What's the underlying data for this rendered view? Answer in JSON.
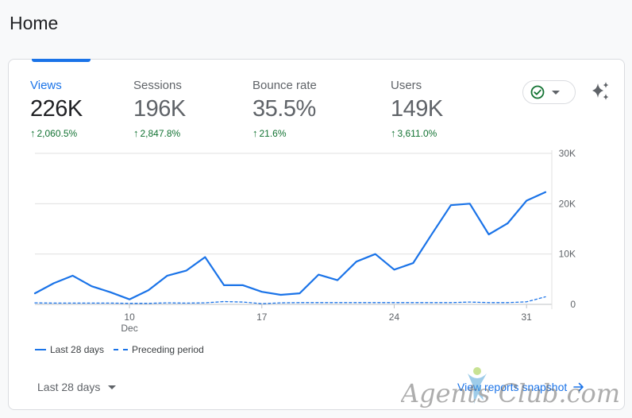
{
  "page": {
    "title": "Home"
  },
  "metrics": [
    {
      "label": "Views",
      "value": "226K",
      "change": "2,060.5%"
    },
    {
      "label": "Sessions",
      "value": "196K",
      "change": "2,847.8%"
    },
    {
      "label": "Bounce rate",
      "value": "35.5%",
      "change": "21.6%"
    },
    {
      "label": "Users",
      "value": "149K",
      "change": "3,611.0%"
    }
  ],
  "controls": {
    "status_icon": "check-circle-icon",
    "insights_icon": "sparkle-icon"
  },
  "legend": {
    "current": "Last 28 days",
    "previous": "Preceding period"
  },
  "footer": {
    "date_range": "Last 28 days",
    "snapshot_link": "View reports snapshot"
  },
  "watermark": {
    "text": "Agents Club.com"
  },
  "colors": {
    "accent": "#1a73e8",
    "positive": "#137333",
    "grid": "#e0e0e0"
  },
  "chart_data": {
    "type": "line",
    "x_ticks": [
      {
        "label": "10",
        "sublabel": "Dec",
        "index": 5
      },
      {
        "label": "17",
        "sublabel": "",
        "index": 12
      },
      {
        "label": "24",
        "sublabel": "",
        "index": 19
      },
      {
        "label": "31",
        "sublabel": "",
        "index": 26
      }
    ],
    "y_ticks": [
      "0",
      "10K",
      "20K",
      "30K"
    ],
    "ylim": [
      0,
      30000
    ],
    "grid": true,
    "legend_position": "bottom-left",
    "series": [
      {
        "name": "Last 28 days",
        "style": "solid",
        "values": [
          2200,
          4200,
          5700,
          3600,
          2400,
          1000,
          2800,
          5700,
          6700,
          9400,
          3800,
          3800,
          2500,
          1900,
          2200,
          5900,
          4800,
          8500,
          10000,
          6900,
          8200,
          14000,
          19700,
          20000,
          13900,
          16100,
          20600,
          22300
        ]
      },
      {
        "name": "Preceding period",
        "style": "dashed",
        "values": [
          300,
          250,
          250,
          250,
          250,
          200,
          200,
          300,
          250,
          300,
          550,
          450,
          150,
          300,
          350,
          350,
          350,
          350,
          350,
          350,
          350,
          350,
          350,
          450,
          350,
          350,
          500,
          1500
        ]
      }
    ]
  }
}
